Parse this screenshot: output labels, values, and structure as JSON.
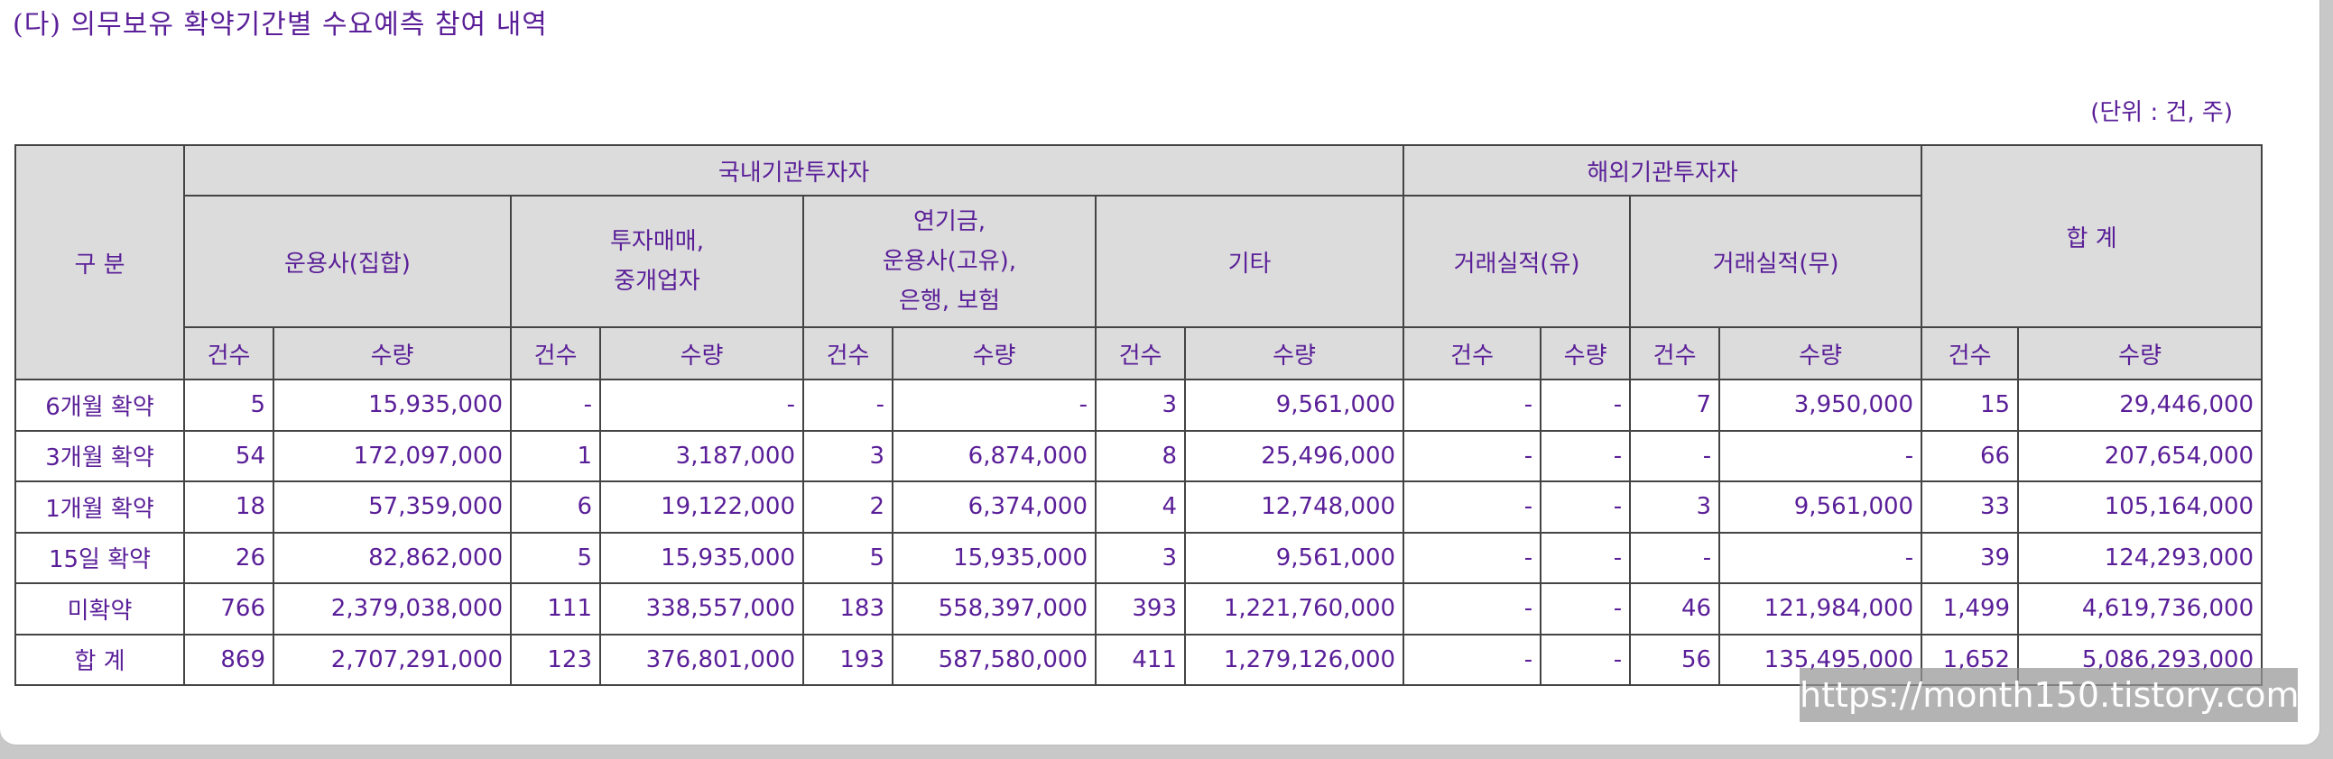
{
  "section_title": "(다) 의무보유 확약기간별 수요예측 참여 내역",
  "unit_note": "(단위 : 건, 주)",
  "table": {
    "header_category": "구 분",
    "header_domestic": "국내기관투자자",
    "header_foreign": "해외기관투자자",
    "header_total": "합 계",
    "sub_headers": {
      "asset_mgmt_collective": "운용사(집합)",
      "investment_trading_line1": "투자매매,",
      "investment_trading_line2": "중개업자",
      "pension_line1": "연기금,",
      "pension_line2": "운용사(고유),",
      "pension_line3": "은행, 보험",
      "other": "기타",
      "trade_record_yes": "거래실적(유)",
      "trade_record_no": "거래실적(무)"
    },
    "count_label": "건수",
    "quantity_label": "수량",
    "rows": [
      {
        "label": "6개월 확약",
        "cells": [
          "5",
          "15,935,000",
          "-",
          "-",
          "-",
          "-",
          "3",
          "9,561,000",
          "-",
          "-",
          "7",
          "3,950,000",
          "15",
          "29,446,000"
        ]
      },
      {
        "label": "3개월 확약",
        "cells": [
          "54",
          "172,097,000",
          "1",
          "3,187,000",
          "3",
          "6,874,000",
          "8",
          "25,496,000",
          "-",
          "-",
          "-",
          "-",
          "66",
          "207,654,000"
        ]
      },
      {
        "label": "1개월 확약",
        "cells": [
          "18",
          "57,359,000",
          "6",
          "19,122,000",
          "2",
          "6,374,000",
          "4",
          "12,748,000",
          "-",
          "-",
          "3",
          "9,561,000",
          "33",
          "105,164,000"
        ]
      },
      {
        "label": "15일 확약",
        "cells": [
          "26",
          "82,862,000",
          "5",
          "15,935,000",
          "5",
          "15,935,000",
          "3",
          "9,561,000",
          "-",
          "-",
          "-",
          "-",
          "39",
          "124,293,000"
        ]
      },
      {
        "label": "미확약",
        "cells": [
          "766",
          "2,379,038,000",
          "111",
          "338,557,000",
          "183",
          "558,397,000",
          "393",
          "1,221,760,000",
          "-",
          "-",
          "46",
          "121,984,000",
          "1,499",
          "4,619,736,000"
        ]
      },
      {
        "label": "합 계",
        "cells": [
          "869",
          "2,707,291,000",
          "123",
          "376,801,000",
          "193",
          "587,580,000",
          "411",
          "1,279,126,000",
          "-",
          "-",
          "56",
          "135,495,000",
          "1,652",
          "5,086,293,000"
        ]
      }
    ]
  },
  "watermark": "https://month150.tistory.com"
}
